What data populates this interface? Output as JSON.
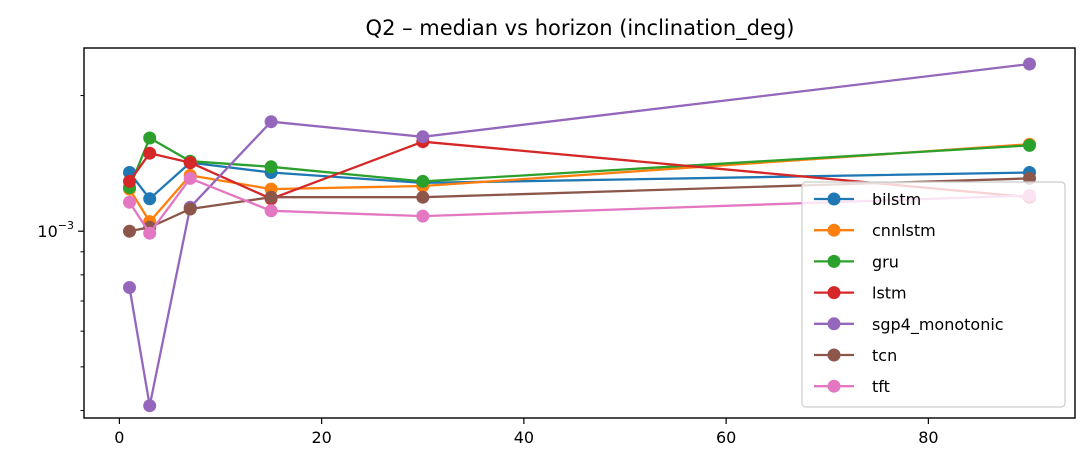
{
  "chart_data": {
    "type": "line",
    "title": "Q2 – median vs horizon (inclination_deg)",
    "xlabel": "",
    "ylabel": "",
    "yscale": "log",
    "xlim": [
      -3.5,
      94.5
    ],
    "ylim": [
      0.000385,
      0.00255
    ],
    "grid": false,
    "legend_position": "lower-right",
    "x": [
      1,
      3,
      7,
      15,
      30,
      90
    ],
    "xticks": [
      0,
      20,
      40,
      60,
      80
    ],
    "xtick_labels": [
      "0",
      "20",
      "40",
      "60",
      "80"
    ],
    "ytick_major": {
      "value": 0.001,
      "base": "10",
      "exponent": "−3"
    },
    "ytick_minor": [
      0.0004,
      0.0005,
      0.0006,
      0.0007,
      0.0008,
      0.0009,
      0.002
    ],
    "series": [
      {
        "name": "bilstm",
        "color": "#1f77b4",
        "values": [
          0.00135,
          0.00118,
          0.00142,
          0.00135,
          0.00128,
          0.00135
        ]
      },
      {
        "name": "cnnlstm",
        "color": "#ff7f0e",
        "values": [
          0.00124,
          0.00105,
          0.00133,
          0.00124,
          0.00126,
          0.00156
        ]
      },
      {
        "name": "gru",
        "color": "#2ca02c",
        "values": [
          0.00125,
          0.00161,
          0.00143,
          0.00139,
          0.00129,
          0.00155
        ]
      },
      {
        "name": "lstm",
        "color": "#d62728",
        "values": [
          0.00129,
          0.00149,
          0.00142,
          0.00118,
          0.00158,
          0.00119
        ]
      },
      {
        "name": "sgp4_monotonic",
        "color": "#9467bd",
        "values": [
          0.00075,
          0.00041,
          0.00113,
          0.00175,
          0.00162,
          0.00235
        ]
      },
      {
        "name": "tcn",
        "color": "#8c564b",
        "values": [
          0.001,
          0.00102,
          0.00112,
          0.00119,
          0.00119,
          0.00131
        ]
      },
      {
        "name": "tft",
        "color": "#e377c2",
        "values": [
          0.00116,
          0.00099,
          0.00131,
          0.00111,
          0.00108,
          0.0012
        ]
      }
    ]
  }
}
